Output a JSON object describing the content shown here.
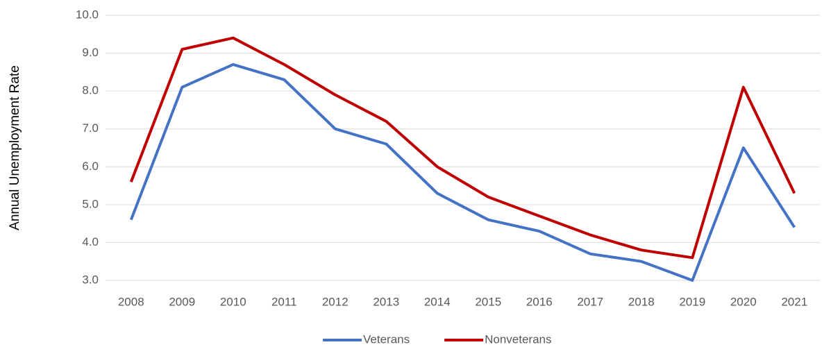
{
  "chart_data": {
    "type": "line",
    "y_label": "Annual Unemployment Rate",
    "categories": [
      "2008",
      "2009",
      "2010",
      "2011",
      "2012",
      "2013",
      "2014",
      "2015",
      "2016",
      "2017",
      "2018",
      "2019",
      "2020",
      "2021"
    ],
    "series": [
      {
        "name": "Veterans",
        "color": "#4472c4",
        "values": [
          4.6,
          8.1,
          8.7,
          8.3,
          7.0,
          6.6,
          5.3,
          4.6,
          4.3,
          3.7,
          3.5,
          3.0,
          6.5,
          4.4
        ]
      },
      {
        "name": "Nonveterans",
        "color": "#c00000",
        "values": [
          5.6,
          9.1,
          9.4,
          8.7,
          7.9,
          7.2,
          6.0,
          5.2,
          4.7,
          4.2,
          3.8,
          3.6,
          8.1,
          5.3
        ]
      }
    ],
    "ylim": [
      3,
      10
    ],
    "yticks": [
      {
        "value": 3,
        "label": "3.0"
      },
      {
        "value": 4,
        "label": "4.0"
      },
      {
        "value": 5,
        "label": "5.0"
      },
      {
        "value": 6,
        "label": "6.0"
      },
      {
        "value": 7,
        "label": "7.0"
      },
      {
        "value": 8,
        "label": "8.0"
      },
      {
        "value": 9,
        "label": "9.0"
      },
      {
        "value": 10,
        "label": "10.0"
      }
    ],
    "grid": true,
    "legend": "bottom"
  }
}
